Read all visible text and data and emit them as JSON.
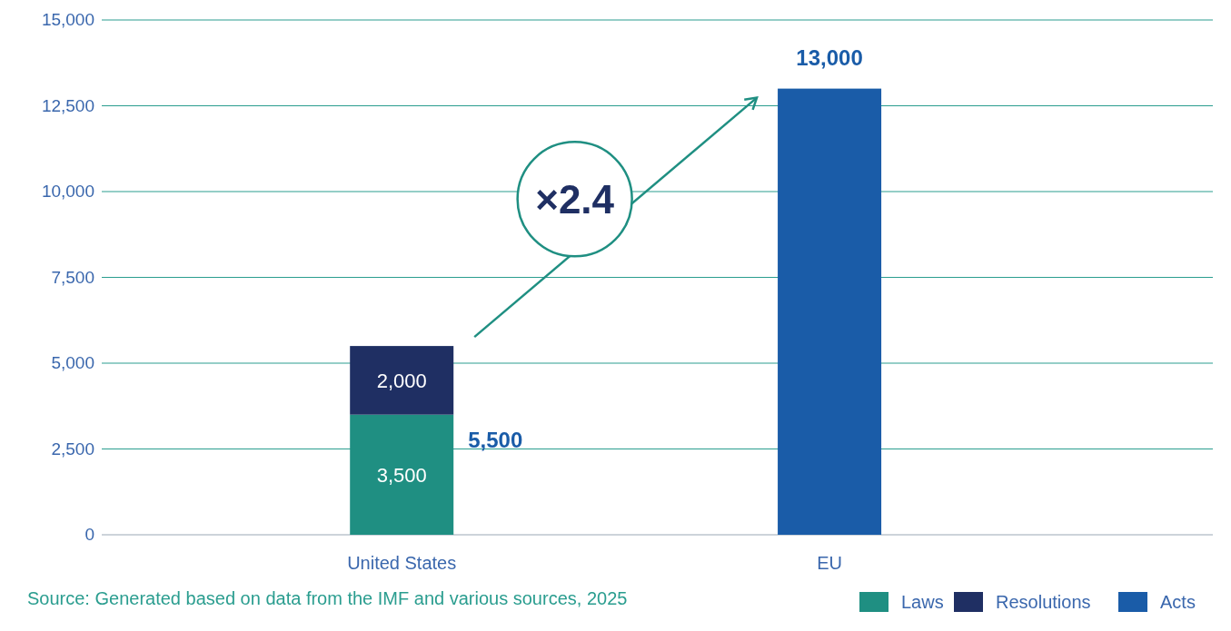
{
  "chart_data": {
    "type": "bar",
    "stacked": true,
    "categories": [
      "United States",
      "EU"
    ],
    "series": [
      {
        "name": "Laws",
        "color": "#1f8f82",
        "values": [
          3500,
          null
        ],
        "value_labels": [
          "3,500",
          null
        ]
      },
      {
        "name": "Resolutions",
        "color": "#1f2f63",
        "values": [
          2000,
          null
        ],
        "value_labels": [
          "2,000",
          null
        ]
      },
      {
        "name": "Acts",
        "color": "#1a5ca8",
        "values": [
          null,
          13000
        ],
        "value_labels": [
          null,
          null
        ]
      }
    ],
    "totals": [
      "5,500",
      "13,000"
    ],
    "ylim": [
      0,
      15000
    ],
    "yticks": [
      {
        "value": 0,
        "label": "0"
      },
      {
        "value": 2500,
        "label": "2,500"
      },
      {
        "value": 5000,
        "label": "5,000"
      },
      {
        "value": 7500,
        "label": "7,500"
      },
      {
        "value": 10000,
        "label": "10,000"
      },
      {
        "value": 12500,
        "label": "12,500"
      },
      {
        "value": 15000,
        "label": "15,000"
      }
    ],
    "grid": "y",
    "legend": "bottom right",
    "annotations": [
      "×2.4",
      "Source: Generated based on data from the IMF and various sources, 2025"
    ]
  }
}
